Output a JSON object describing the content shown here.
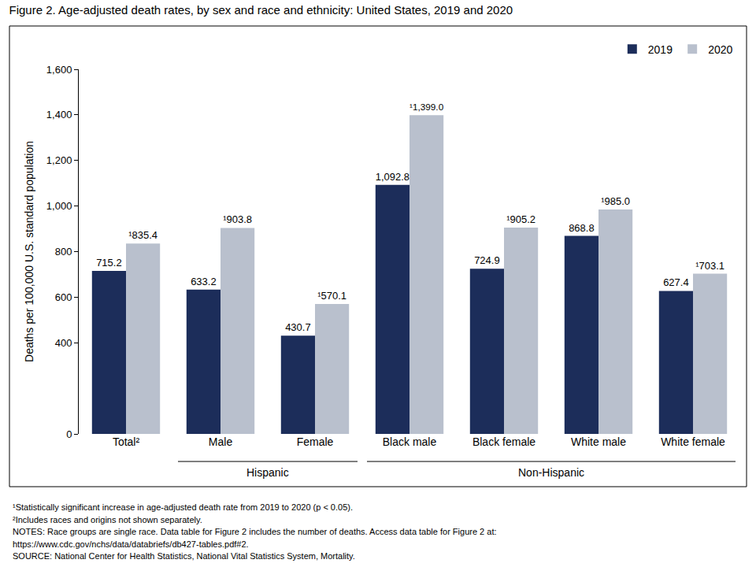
{
  "chart_data": {
    "type": "bar",
    "title": "Figure 2. Age-adjusted death rates, by sex and race and ethnicity: United States, 2019 and 2020",
    "y_label": "Deaths per 100,000 U.S. standard population",
    "categories": [
      "Total²",
      "Male",
      "Female",
      "Black male",
      "Black female",
      "White male",
      "White female"
    ],
    "groups": [
      {
        "label": "Hispanic",
        "members": [
          "Male",
          "Female"
        ]
      },
      {
        "label": "Non-Hispanic",
        "members": [
          "Black male",
          "Black female",
          "White male",
          "White female"
        ]
      }
    ],
    "series": [
      {
        "name": "2019",
        "color": "#1c2d5a",
        "values": [
          715.2,
          633.2,
          430.7,
          1092.8,
          724.9,
          868.8,
          627.4
        ],
        "value_labels": [
          "715.2",
          "633.2",
          "430.7",
          "1,092.8",
          "724.9",
          "868.8",
          "627.4"
        ]
      },
      {
        "name": "2020",
        "color": "#b9c0cd",
        "values": [
          835.4,
          903.8,
          570.1,
          1399.0,
          905.2,
          985.0,
          703.1
        ],
        "value_labels": [
          "¹835.4",
          "¹903.8",
          "¹570.1",
          "¹1,399.0",
          "¹905.2",
          "¹985.0",
          "¹703.1"
        ]
      }
    ],
    "ylim": [
      0,
      1600
    ],
    "yticks": [
      0,
      400,
      600,
      800,
      {
        "value": 1000,
        "label": "1,000"
      },
      {
        "value": 1200,
        "label": "1,200"
      },
      {
        "value": 1400,
        "label": "1,400"
      },
      {
        "value": 1600,
        "label": "1,600"
      }
    ],
    "grid": false,
    "legend": "top-right",
    "data_labels": true,
    "annotations": [
      "¹Statistically significant increase in age-adjusted death rate from 2019 to 2020 (p < 0.05).",
      "²Includes races and origins not shown separately.",
      "NOTES: Race groups are single race. Data table for Figure 2 includes the number of deaths. Access data table for Figure 2 at:",
      "https://www.cdc.gov/nchs/data/databriefs/db427-tables.pdf#2.",
      "SOURCE: National Center for Health Statistics, National Vital Statistics System, Mortality."
    ]
  }
}
